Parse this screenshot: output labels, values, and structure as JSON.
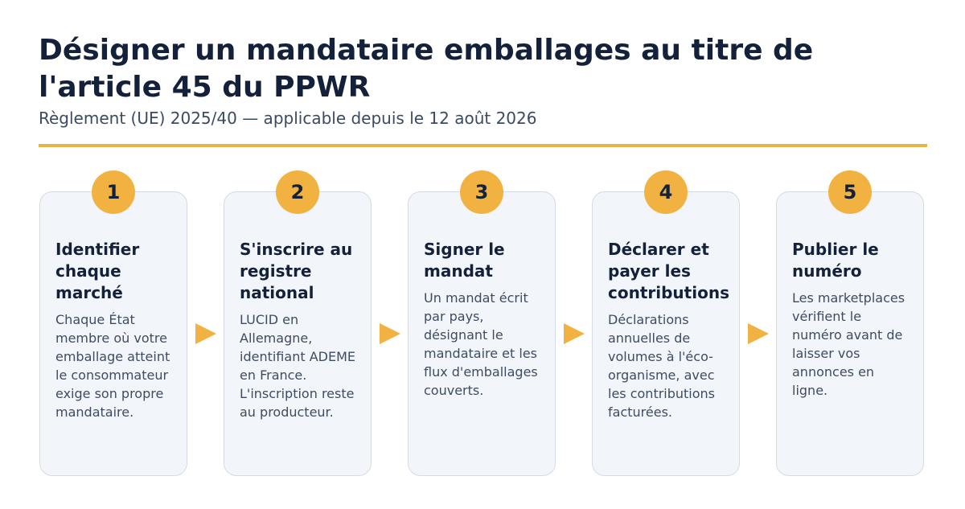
{
  "header": {
    "title": "Désigner un mandataire emballages au titre de l'article 45 du PPWR",
    "subtitle": "Règlement (UE) 2025/40 — applicable depuis le 12 août 2026"
  },
  "colors": {
    "accent": "#f1b241",
    "title": "#14213a",
    "body_text": "#3e4c63",
    "card_background": "#f2f5f9",
    "card_border": "#d4dbe6"
  },
  "steps": [
    {
      "number": "1",
      "title": "Identifier chaque marché",
      "text": "Chaque État membre où votre emballage atteint le consommateur exige son propre mandataire."
    },
    {
      "number": "2",
      "title": "S'inscrire au registre national",
      "text": "LUCID en Allemagne, identifiant ADEME en France. L'inscription reste au producteur."
    },
    {
      "number": "3",
      "title": "Signer le mandat",
      "text": "Un mandat écrit par pays, désignant le mandataire et les flux d'emballages couverts."
    },
    {
      "number": "4",
      "title": "Déclarer et payer les contributions",
      "text": "Déclarations annuelles de volumes à l'éco-organisme, avec les contributions facturées."
    },
    {
      "number": "5",
      "title": "Publier le numéro",
      "text": "Les marketplaces vérifient le numéro avant de laisser vos annonces en ligne."
    }
  ]
}
